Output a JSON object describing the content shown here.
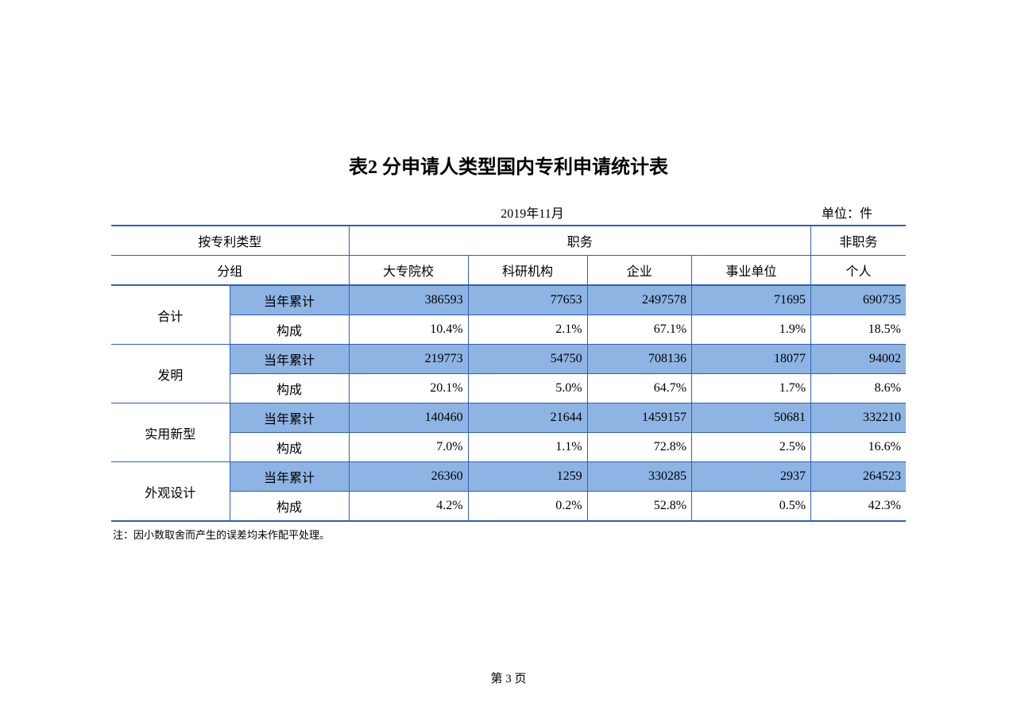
{
  "title": "表2  分申请人类型国内专利申请统计表",
  "date": "2019年11月",
  "unit": "单位：件",
  "footnote": "注：因小数取舍而产生的误差均未作配平处理。",
  "page_number": "第 3 页",
  "table": {
    "type": "table",
    "border_color": "#2e5fbc",
    "highlight_color": "#8eb4e3",
    "background_color": "#ffffff",
    "text_color": "#000000",
    "header": {
      "group_label_line1": "按专利类型",
      "group_label_line2": "分组",
      "duty_label": "职务",
      "nonduty_label": "非职务",
      "cols": {
        "col1": "大专院校",
        "col2": "科研机构",
        "col3": "企业",
        "col4": "事业单位",
        "col5": "个人"
      }
    },
    "metric_labels": {
      "cumulative": "当年累计",
      "composition": "构成"
    },
    "rows": [
      {
        "category": "合计",
        "cumulative": {
          "c1": "386593",
          "c2": "77653",
          "c3": "2497578",
          "c4": "71695",
          "c5": "690735"
        },
        "composition": {
          "c1": "10.4%",
          "c2": "2.1%",
          "c3": "67.1%",
          "c4": "1.9%",
          "c5": "18.5%"
        }
      },
      {
        "category": "发明",
        "cumulative": {
          "c1": "219773",
          "c2": "54750",
          "c3": "708136",
          "c4": "18077",
          "c5": "94002"
        },
        "composition": {
          "c1": "20.1%",
          "c2": "5.0%",
          "c3": "64.7%",
          "c4": "1.7%",
          "c5": "8.6%"
        }
      },
      {
        "category": "实用新型",
        "cumulative": {
          "c1": "140460",
          "c2": "21644",
          "c3": "1459157",
          "c4": "50681",
          "c5": "332210"
        },
        "composition": {
          "c1": "7.0%",
          "c2": "1.1%",
          "c3": "72.8%",
          "c4": "2.5%",
          "c5": "16.6%"
        }
      },
      {
        "category": "外观设计",
        "cumulative": {
          "c1": "26360",
          "c2": "1259",
          "c3": "330285",
          "c4": "2937",
          "c5": "264523"
        },
        "composition": {
          "c1": "4.2%",
          "c2": "0.2%",
          "c3": "52.8%",
          "c4": "0.5%",
          "c5": "42.3%"
        }
      }
    ]
  }
}
